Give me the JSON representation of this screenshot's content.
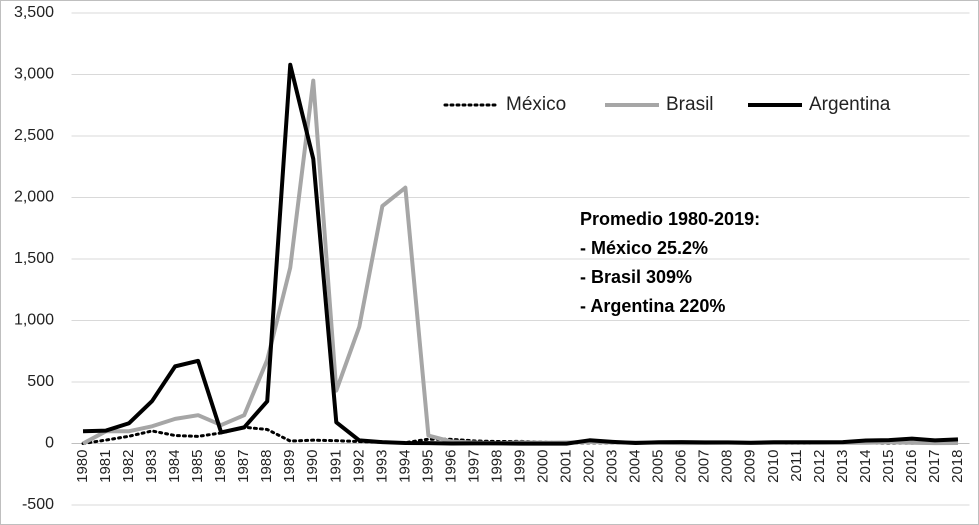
{
  "chart_data": {
    "type": "line",
    "categories": [
      "1980",
      "1981",
      "1982",
      "1983",
      "1984",
      "1985",
      "1986",
      "1987",
      "1988",
      "1989",
      "1990",
      "1991",
      "1992",
      "1993",
      "1994",
      "1995",
      "1996",
      "1997",
      "1998",
      "1999",
      "2000",
      "2001",
      "2002",
      "2003",
      "2004",
      "2005",
      "2006",
      "2007",
      "2008",
      "2009",
      "2010",
      "2011",
      "2012",
      "2013",
      "2014",
      "2015",
      "2016",
      "2017",
      "2018"
    ],
    "series": [
      {
        "name": "México",
        "color": "#000000",
        "dash": "dotted",
        "values": [
          0,
          28,
          59,
          102,
          65,
          58,
          86,
          132,
          114,
          20,
          27,
          23,
          16,
          10,
          7,
          35,
          34,
          21,
          16,
          17,
          10,
          6,
          5,
          5,
          5,
          4,
          4,
          4,
          5,
          5,
          4,
          3,
          4,
          4,
          4,
          3,
          3,
          6,
          5
        ]
      },
      {
        "name": "Brasil",
        "color": "#a6a6a6",
        "dash": "solid",
        "values": [
          0,
          100,
          100,
          140,
          200,
          230,
          150,
          230,
          680,
          1430,
          2950,
          430,
          950,
          1930,
          2080,
          65,
          16,
          7,
          2,
          9,
          6,
          8,
          12,
          9,
          8,
          6,
          3,
          4,
          6,
          4,
          6,
          6,
          6,
          6,
          6,
          10,
          6,
          3,
          4
        ]
      },
      {
        "name": "Argentina",
        "color": "#000000",
        "dash": "solid",
        "values": [
          100,
          105,
          165,
          345,
          627,
          672,
          90,
          131,
          343,
          3079,
          2314,
          172,
          25,
          11,
          4,
          3,
          0,
          1,
          1,
          -1,
          -1,
          -1,
          26,
          13,
          4,
          10,
          11,
          9,
          9,
          6,
          10,
          10,
          10,
          11,
          24,
          27,
          40,
          25,
          34
        ]
      }
    ],
    "ylim": [
      -500,
      3500
    ],
    "yticks": [
      -500,
      0,
      500,
      {
        "value": 1000,
        "label": "1,000"
      },
      {
        "value": 1500,
        "label": "1,500"
      },
      {
        "value": 2000,
        "label": "2,000"
      },
      {
        "value": 2500,
        "label": "2,500"
      },
      {
        "value": 3000,
        "label": "3,000"
      },
      {
        "value": 3500,
        "label": "3,500"
      }
    ],
    "grid": true,
    "annotations": [
      "Promedio 1980-2019:",
      "- México 25.2%",
      "- Brasil 309%",
      "- Argentina 220%"
    ]
  }
}
